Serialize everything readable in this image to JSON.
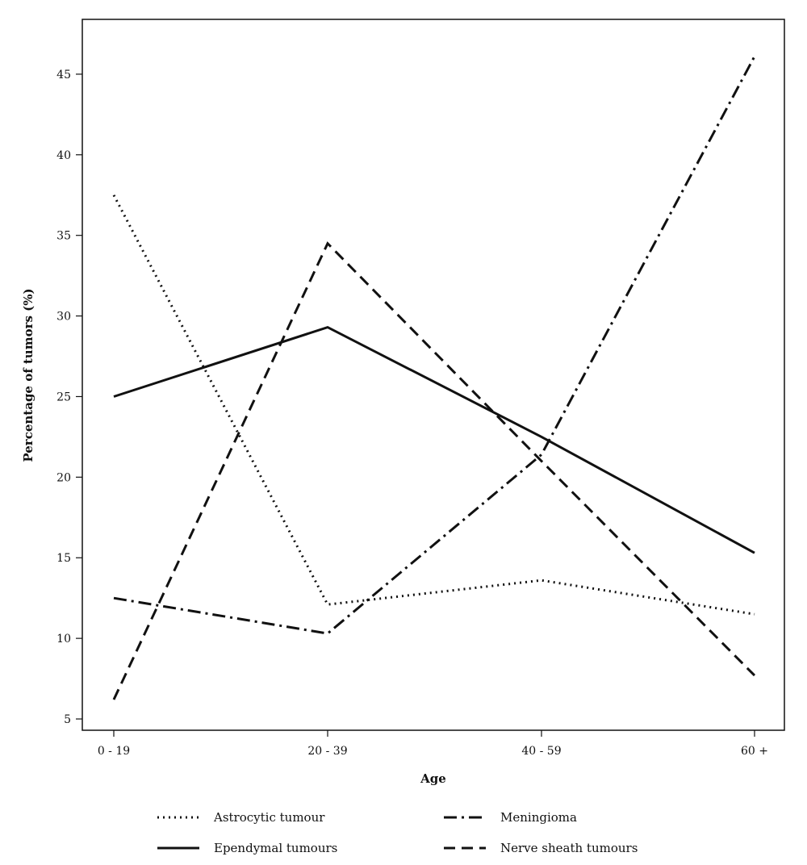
{
  "chart_data": {
    "type": "line",
    "title": "",
    "xlabel": "Age",
    "ylabel": "Percentage of tumors (%)",
    "categories": [
      "0 - 19",
      "20 - 39",
      "40 - 59",
      "60 +"
    ],
    "ylim": [
      4.3,
      48.4
    ],
    "yticks": [
      5,
      10,
      15,
      20,
      25,
      30,
      35,
      40,
      45
    ],
    "grid": false,
    "legend_position": "bottom",
    "series": [
      {
        "name": "Astrocytic tumour",
        "values": [
          37.5,
          12.1,
          13.6,
          11.5
        ],
        "style": "dotted",
        "color": "#111111"
      },
      {
        "name": "Ependymal tumours",
        "values": [
          25.0,
          29.3,
          22.5,
          15.3
        ],
        "style": "solid",
        "color": "#111111"
      },
      {
        "name": "Meningioma",
        "values": [
          12.5,
          10.3,
          21.4,
          46.1
        ],
        "style": "dashdot",
        "color": "#111111"
      },
      {
        "name": "Nerve sheath tumours",
        "values": [
          6.2,
          34.5,
          21.0,
          7.7
        ],
        "style": "dashed",
        "color": "#111111"
      }
    ]
  }
}
